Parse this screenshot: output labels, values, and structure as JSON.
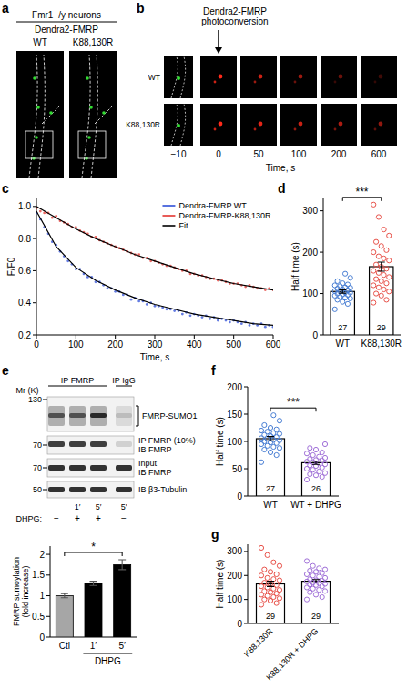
{
  "figure": {
    "a": {
      "panel_label": "a",
      "header": "Fmr1−/y neurons",
      "construct": "Dendra2-FMRP",
      "columns": [
        "WT",
        "K88,130R"
      ]
    },
    "b": {
      "panel_label": "b",
      "annotation": "Dendra2-FMRP photoconversion",
      "rows": [
        "WT",
        "K88,130R"
      ],
      "time_labels": [
        "−10",
        "0",
        "50",
        "100",
        "200",
        "600"
      ],
      "axis_label": "Time, s"
    },
    "e": {
      "panel_label": "e",
      "lane_groups": [
        {
          "label": "IP FMRP",
          "lanes": 3
        },
        {
          "label": "IP IgG",
          "lanes": 1
        }
      ],
      "mr_label": "Mr (K)",
      "blots": [
        {
          "marker": "130",
          "labels": [
            "FMRP-SUMO1"
          ]
        },
        {
          "marker": "70",
          "labels": [
            "IP FMRP (10%)",
            "IB FMRP"
          ]
        },
        {
          "marker": "70",
          "labels": [
            "Input",
            "IB FMRP"
          ]
        },
        {
          "marker": "50",
          "labels": [
            "IB β3-Tubulin"
          ]
        }
      ],
      "treatment_label": "DHPG:",
      "times": [
        null,
        "1′",
        "5′",
        "5′"
      ],
      "dhpg": [
        "−",
        "+",
        "+",
        "−"
      ]
    }
  },
  "chart_data": [
    {
      "type": "line",
      "panel_label": "c",
      "xlabel": "Time, s",
      "ylabel": "F/F0",
      "x": [
        0,
        10,
        20,
        30,
        40,
        50,
        60,
        70,
        80,
        90,
        100,
        110,
        120,
        130,
        140,
        150,
        160,
        170,
        180,
        190,
        200,
        210,
        220,
        230,
        240,
        250,
        260,
        270,
        280,
        290,
        300,
        310,
        320,
        330,
        340,
        350,
        360,
        370,
        380,
        390,
        400,
        410,
        420,
        430,
        440,
        450,
        460,
        470,
        480,
        490,
        500,
        510,
        520,
        530,
        540,
        550,
        560,
        570,
        580,
        590,
        600
      ],
      "xlim": [
        0,
        600
      ],
      "xticks": [
        0,
        100,
        200,
        300,
        400,
        500,
        600
      ],
      "ylim": [
        0.2,
        1.05
      ],
      "yticks": [
        0.2,
        0.4,
        0.6,
        0.8,
        {
          "value": 1,
          "label": "1.0"
        }
      ],
      "legend": "upper right",
      "series": [
        {
          "name": "Dendra-FMRP WT",
          "type": "scatter",
          "color": "#2f4fd8",
          "values": [
            0.96,
            0.92,
            0.87,
            0.83,
            0.78,
            0.76,
            0.72,
            0.69,
            0.66,
            0.64,
            0.61,
            0.61,
            0.58,
            0.56,
            0.56,
            0.53,
            0.53,
            0.51,
            0.49,
            0.49,
            0.47,
            0.47,
            0.45,
            0.45,
            0.42,
            0.43,
            0.41,
            0.41,
            0.39,
            0.4,
            0.38,
            0.38,
            0.37,
            0.36,
            0.36,
            0.35,
            0.35,
            0.33,
            0.34,
            0.32,
            0.33,
            0.32,
            0.31,
            0.32,
            0.3,
            0.31,
            0.29,
            0.3,
            0.29,
            0.28,
            0.29,
            0.28,
            0.27,
            0.28,
            0.26,
            0.27,
            0.26,
            0.27,
            0.25,
            0.26,
            0.25
          ]
        },
        {
          "name": "Dendra-FMRP-K88,130R",
          "type": "scatter",
          "color": "#e3342f",
          "values": [
            0.99,
            0.97,
            0.96,
            0.96,
            0.93,
            0.94,
            0.91,
            0.9,
            0.89,
            0.87,
            0.87,
            0.85,
            0.84,
            0.83,
            0.81,
            0.81,
            0.79,
            0.78,
            0.77,
            0.76,
            0.75,
            0.74,
            0.73,
            0.72,
            0.71,
            0.7,
            0.7,
            0.68,
            0.68,
            0.66,
            0.66,
            0.65,
            0.64,
            0.63,
            0.63,
            0.62,
            0.61,
            0.6,
            0.6,
            0.58,
            0.58,
            0.57,
            0.57,
            0.56,
            0.55,
            0.55,
            0.54,
            0.54,
            0.53,
            0.52,
            0.52,
            0.52,
            0.51,
            0.5,
            0.51,
            0.5,
            0.49,
            0.49,
            0.48,
            0.49,
            0.48
          ]
        },
        {
          "name": "Fit",
          "type": "line",
          "color": "#000000",
          "x": [
            0,
            50,
            100,
            150,
            200,
            250,
            300,
            350,
            400,
            450,
            500,
            550,
            600
          ],
          "values": [
            0.97,
            0.75,
            0.62,
            0.54,
            0.48,
            0.43,
            0.39,
            0.36,
            0.33,
            0.31,
            0.29,
            0.27,
            0.26
          ]
        },
        {
          "name": "Fit",
          "type": "line",
          "color": "#000000",
          "x": [
            0,
            50,
            100,
            150,
            200,
            250,
            300,
            350,
            400,
            450,
            500,
            550,
            600
          ],
          "values": [
            1.0,
            0.93,
            0.86,
            0.8,
            0.75,
            0.7,
            0.66,
            0.62,
            0.58,
            0.55,
            0.52,
            0.5,
            0.48
          ]
        }
      ]
    },
    {
      "type": "bar",
      "panel_label": "d",
      "ylabel": "Half time (s)",
      "categories": [
        "WT",
        "K88,130R"
      ],
      "values": [
        105,
        165
      ],
      "errors": [
        4,
        11
      ],
      "n": [
        27,
        29
      ],
      "colors": [
        "#4a7fd4",
        "#e8524a"
      ],
      "points": [
        [
          62,
          75,
          80,
          85,
          88,
          90,
          92,
          95,
          97,
          98,
          100,
          102,
          103,
          105,
          106,
          108,
          110,
          112,
          114,
          115,
          118,
          120,
          122,
          125,
          130,
          138,
          148
        ],
        [
          78,
          85,
          95,
          100,
          105,
          110,
          115,
          120,
          125,
          130,
          135,
          140,
          145,
          150,
          155,
          160,
          165,
          170,
          180,
          185,
          190,
          200,
          205,
          215,
          225,
          240,
          255,
          285,
          315
        ]
      ],
      "ylim": [
        0,
        330
      ],
      "yticks": [
        0,
        100,
        200,
        300
      ],
      "annotations": [
        {
          "text": "***",
          "between": [
            "WT",
            "K88,130R"
          ]
        }
      ]
    },
    {
      "type": "bar",
      "ylabel": "FMRP sumoylation (fold increase)",
      "categories": [
        "Ctl",
        "1′",
        "5′"
      ],
      "values": [
        1,
        1.3,
        1.75
      ],
      "errors": [
        0.05,
        0.05,
        0.12
      ],
      "colors": [
        "#a6a6a6",
        "#000000",
        "#000000"
      ],
      "ylim": [
        0,
        2.2
      ],
      "yticks": [
        0,
        0.5,
        1,
        1.5,
        2
      ],
      "groups": [
        {
          "label": "DHPG",
          "categories": [
            "1′",
            "5′"
          ]
        }
      ],
      "annotations": [
        {
          "text": "*",
          "between": [
            "Ctl",
            "5′"
          ]
        }
      ]
    },
    {
      "type": "bar",
      "panel_label": "f",
      "ylabel": "Half time (s)",
      "categories": [
        "WT",
        "WT + DHPG"
      ],
      "values": [
        105,
        61
      ],
      "errors": [
        4,
        3
      ],
      "n": [
        27,
        26
      ],
      "colors": [
        "#4a7fd4",
        "#a070d8"
      ],
      "points": [
        [
          62,
          75,
          80,
          85,
          88,
          90,
          92,
          95,
          97,
          98,
          100,
          102,
          103,
          105,
          106,
          108,
          110,
          112,
          114,
          115,
          118,
          120,
          122,
          125,
          130,
          138,
          148
        ],
        [
          30,
          35,
          38,
          40,
          42,
          45,
          48,
          50,
          52,
          55,
          56,
          58,
          60,
          62,
          63,
          65,
          66,
          68,
          70,
          72,
          75,
          78,
          80,
          85,
          88,
          95
        ]
      ],
      "ylim": [
        0,
        200
      ],
      "yticks": [
        0,
        50,
        100,
        150,
        200
      ],
      "annotations": [
        {
          "text": "***",
          "between": [
            "WT",
            "WT + DHPG"
          ]
        }
      ]
    },
    {
      "type": "bar",
      "panel_label": "g",
      "ylabel": "Half time (s)",
      "categories": [
        "K88,130R",
        "K88,130R + DHPG"
      ],
      "values": [
        165,
        176
      ],
      "errors": [
        11,
        7
      ],
      "n": [
        29,
        29
      ],
      "colors": [
        "#e8524a",
        "#a070d8"
      ],
      "points": [
        [
          78,
          85,
          95,
          100,
          105,
          110,
          115,
          120,
          125,
          130,
          135,
          140,
          145,
          150,
          155,
          160,
          165,
          170,
          180,
          185,
          190,
          200,
          205,
          215,
          225,
          240,
          255,
          285,
          315
        ],
        [
          100,
          110,
          120,
          130,
          135,
          140,
          145,
          150,
          155,
          160,
          162,
          165,
          168,
          170,
          175,
          178,
          180,
          185,
          190,
          195,
          200,
          205,
          210,
          215,
          220,
          225,
          230,
          240,
          260
        ]
      ],
      "ylim": [
        0,
        330
      ],
      "yticks": [
        0,
        100,
        200,
        300
      ]
    }
  ]
}
